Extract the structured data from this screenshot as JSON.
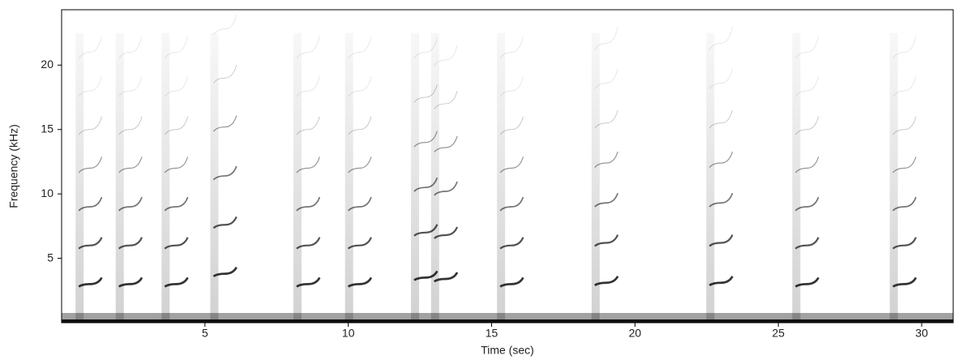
{
  "chart_data": {
    "type": "spectrogram",
    "x_label": "Time (sec)",
    "y_label": "Frequency (kHz)",
    "x": [
      0.6,
      2.0,
      3.6,
      5.3,
      8.2,
      10.0,
      12.3,
      13.0,
      15.3,
      18.6,
      22.6,
      25.6,
      29.0
    ],
    "values": [
      3.0,
      3.0,
      3.0,
      3.8,
      3.0,
      3.0,
      3.5,
      3.4,
      3.0,
      3.1,
      3.1,
      3.0,
      3.0
    ],
    "color": "#111111",
    "xlim": [
      0,
      31.1
    ],
    "ylim": [
      0,
      24.3
    ],
    "xticks": [
      5,
      10,
      15,
      20,
      25,
      30
    ],
    "yticks": [
      5,
      10,
      15,
      20
    ]
  }
}
